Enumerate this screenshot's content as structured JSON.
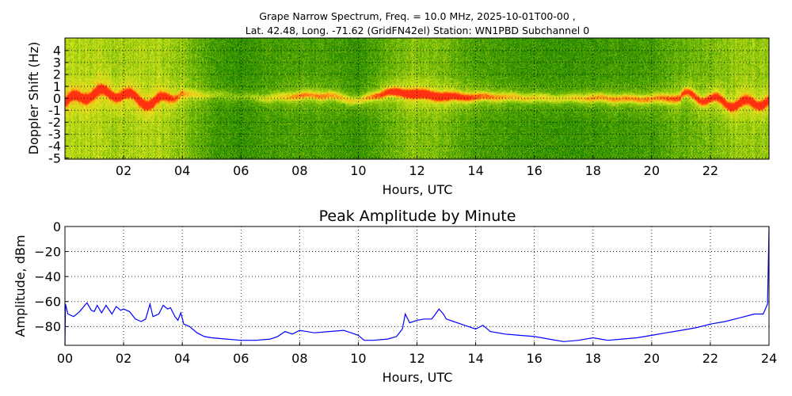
{
  "chart_data": [
    {
      "type": "heatmap",
      "title_line1": "Grape Narrow Spectrum, Freq. = 10.0 MHz, 2025-10-01T00-00 ,",
      "title_line2": "Lat.  42.48, Long. -71.62 (GridFN42el) Station: WN1PBD Subchannel 0",
      "xlabel": "Hours, UTC",
      "ylabel": "Doppler Shift (Hz)",
      "xlim": [
        0,
        24
      ],
      "ylim": [
        -5.1,
        5.05
      ],
      "xticks": [
        {
          "v": 2,
          "label": "02"
        },
        {
          "v": 4,
          "label": "04"
        },
        {
          "v": 6,
          "label": "06"
        },
        {
          "v": 8,
          "label": "08"
        },
        {
          "v": 10,
          "label": "10"
        },
        {
          "v": 12,
          "label": "12"
        },
        {
          "v": 14,
          "label": "14"
        },
        {
          "v": 16,
          "label": "16"
        },
        {
          "v": 18,
          "label": "18"
        },
        {
          "v": 20,
          "label": "20"
        },
        {
          "v": 22,
          "label": "22"
        }
      ],
      "yticks": [
        {
          "v": 4,
          "label": "4"
        },
        {
          "v": 3,
          "label": "3"
        },
        {
          "v": 2,
          "label": "2"
        },
        {
          "v": 1,
          "label": "1"
        },
        {
          "v": 0,
          "label": "0"
        },
        {
          "v": -1,
          "label": "-1"
        },
        {
          "v": -2,
          "label": "-2"
        },
        {
          "v": -3,
          "label": "-3"
        },
        {
          "v": -4,
          "label": "-4"
        },
        {
          "v": -5,
          "label": "-5"
        }
      ],
      "grid": true,
      "colormap": [
        "#006a00",
        "#3f9a00",
        "#9acd10",
        "#e8e820",
        "#ff9a10",
        "#ff3010"
      ],
      "hours": [
        0,
        1,
        2,
        3,
        4,
        5,
        6,
        7,
        8,
        9,
        10,
        11,
        12,
        13,
        14,
        15,
        16,
        17,
        18,
        19,
        20,
        21,
        22,
        23,
        24
      ],
      "background_level": [
        0.55,
        0.58,
        0.52,
        0.56,
        0.45,
        0.2,
        0.12,
        0.2,
        0.22,
        0.2,
        0.15,
        0.3,
        0.42,
        0.35,
        0.22,
        0.18,
        0.15,
        0.14,
        0.16,
        0.18,
        0.2,
        0.32,
        0.38,
        0.48,
        0.5
      ],
      "trace_strength": [
        0.85,
        0.9,
        0.8,
        0.85,
        0.35,
        0.2,
        0.15,
        0.3,
        0.5,
        0.5,
        0.35,
        0.7,
        0.95,
        0.85,
        0.6,
        0.45,
        0.4,
        0.35,
        0.5,
        0.5,
        0.5,
        0.6,
        0.7,
        0.8,
        0.8
      ],
      "trace_center_hz": [
        -0.3,
        0.2,
        0.5,
        -0.2,
        0.3,
        0.3,
        0.2,
        0.0,
        0.2,
        0.3,
        -0.2,
        0.5,
        0.4,
        0.2,
        0.1,
        0.1,
        0.1,
        0.0,
        0.0,
        0.0,
        0.0,
        0.0,
        -0.1,
        -0.2,
        -0.3
      ]
    },
    {
      "type": "line",
      "title": "Peak Amplitude by Minute",
      "xlabel": "Hours, UTC",
      "ylabel": "Amplitude, dBm",
      "xlim": [
        0,
        24
      ],
      "ylim": [
        -95,
        0
      ],
      "xticks": [
        {
          "v": 0,
          "label": "00"
        },
        {
          "v": 2,
          "label": "02"
        },
        {
          "v": 4,
          "label": "04"
        },
        {
          "v": 6,
          "label": "06"
        },
        {
          "v": 8,
          "label": "08"
        },
        {
          "v": 10,
          "label": "10"
        },
        {
          "v": 12,
          "label": "12"
        },
        {
          "v": 14,
          "label": "14"
        },
        {
          "v": 16,
          "label": "16"
        },
        {
          "v": 18,
          "label": "18"
        },
        {
          "v": 20,
          "label": "20"
        },
        {
          "v": 22,
          "label": "22"
        },
        {
          "v": 24,
          "label": "24"
        }
      ],
      "yticks": [
        {
          "v": 0,
          "label": "0"
        },
        {
          "v": -20,
          "label": "−20"
        },
        {
          "v": -40,
          "label": "−40"
        },
        {
          "v": -60,
          "label": "−60"
        },
        {
          "v": -80,
          "label": "−80"
        }
      ],
      "grid": true,
      "series": [
        {
          "name": "Peak Amplitude",
          "color": "#0000ff",
          "x": [
            0,
            0.02,
            0.1,
            0.3,
            0.5,
            0.75,
            0.9,
            1.0,
            1.1,
            1.25,
            1.4,
            1.6,
            1.75,
            1.9,
            2.0,
            2.2,
            2.4,
            2.6,
            2.75,
            2.9,
            3.0,
            3.2,
            3.35,
            3.5,
            3.6,
            3.75,
            3.85,
            3.95,
            4.05,
            4.25,
            4.5,
            4.75,
            5.0,
            5.5,
            6.0,
            6.5,
            7.0,
            7.25,
            7.5,
            7.75,
            8.0,
            8.5,
            9.0,
            9.5,
            9.75,
            10.0,
            10.2,
            10.5,
            11.0,
            11.3,
            11.5,
            11.6,
            11.75,
            12.0,
            12.25,
            12.5,
            12.6,
            12.75,
            12.9,
            13.0,
            13.25,
            13.5,
            13.75,
            14.0,
            14.25,
            14.5,
            15.0,
            15.5,
            16.0,
            16.5,
            17.0,
            17.5,
            18.0,
            18.5,
            19.0,
            19.5,
            20.0,
            20.5,
            21.0,
            21.5,
            22.0,
            22.5,
            23.0,
            23.5,
            23.8,
            23.95,
            24.0
          ],
          "y": [
            -95,
            -62,
            -70,
            -72,
            -68,
            -61,
            -67,
            -68,
            -63,
            -69,
            -63,
            -70,
            -64,
            -67,
            -66,
            -68,
            -74,
            -76,
            -74,
            -62,
            -72,
            -70,
            -63,
            -66,
            -65,
            -72,
            -75,
            -69,
            -78,
            -80,
            -85,
            -88,
            -89,
            -90,
            -91,
            -91,
            -90,
            -88,
            -84,
            -86,
            -83,
            -85,
            -84,
            -83,
            -85,
            -87,
            -91,
            -91,
            -90,
            -88,
            -82,
            -70,
            -77,
            -75,
            -74,
            -74,
            -71,
            -66,
            -70,
            -74,
            -76,
            -78,
            -80,
            -82,
            -79,
            -84,
            -86,
            -87,
            -88,
            -90,
            -92,
            -91,
            -89,
            -91,
            -90,
            -89,
            -87,
            -85,
            -83,
            -81,
            -78,
            -76,
            -73,
            -70,
            -70,
            -62,
            0
          ]
        }
      ]
    }
  ]
}
